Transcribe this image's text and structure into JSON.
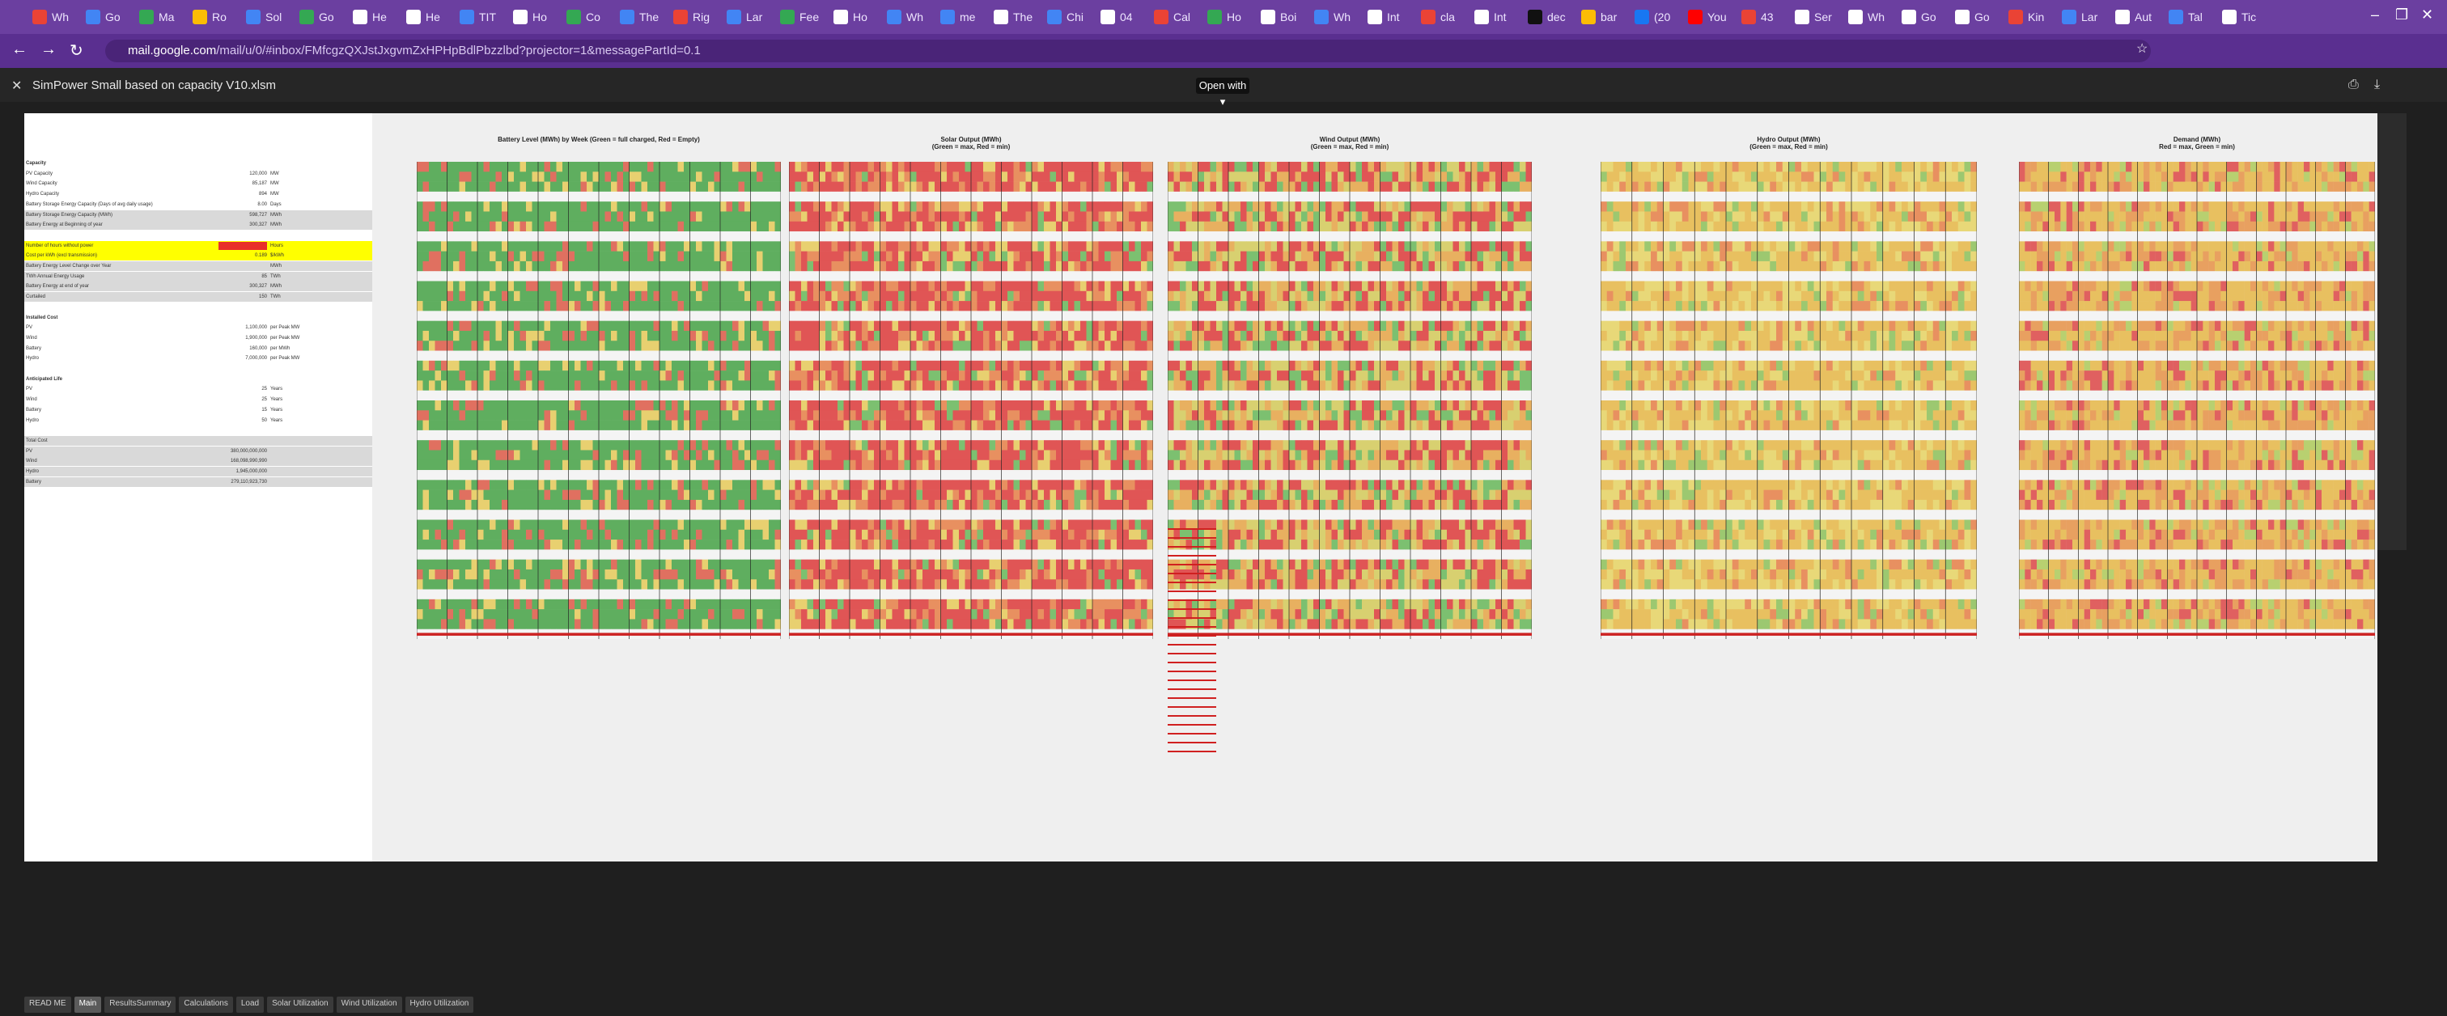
{
  "tabs": [
    {
      "label": "Wh",
      "color": "#ea4335"
    },
    {
      "label": "Go",
      "color": "#4285f4"
    },
    {
      "label": "Ma",
      "color": "#34a853"
    },
    {
      "label": "Ro",
      "color": "#fbbc05"
    },
    {
      "label": "Sol",
      "color": "#4285f4"
    },
    {
      "label": "Go",
      "color": "#34a853"
    },
    {
      "label": "He",
      "color": "#ffffff"
    },
    {
      "label": "He",
      "color": "#ffffff"
    },
    {
      "label": "TIT",
      "color": "#4285f4"
    },
    {
      "label": "Ho",
      "color": "#ffffff"
    },
    {
      "label": "Co",
      "color": "#34a853"
    },
    {
      "label": "The",
      "color": "#4285f4"
    },
    {
      "label": "Rig",
      "color": "#ea4335"
    },
    {
      "label": "Lar",
      "color": "#4285f4"
    },
    {
      "label": "Fee",
      "color": "#34a853"
    },
    {
      "label": "Ho",
      "color": "#ffffff"
    },
    {
      "label": "Wh",
      "color": "#4285f4"
    },
    {
      "label": "me",
      "color": "#4285f4"
    },
    {
      "label": "The",
      "color": "#ffffff"
    },
    {
      "label": "Chi",
      "color": "#4285f4"
    },
    {
      "label": "04",
      "color": "#ffffff"
    },
    {
      "label": "Cal",
      "color": "#ea4335"
    },
    {
      "label": "Ho",
      "color": "#34a853"
    },
    {
      "label": "Boi",
      "color": "#ffffff"
    },
    {
      "label": "Wh",
      "color": "#4285f4"
    },
    {
      "label": "Int",
      "color": "#ffffff"
    },
    {
      "label": "cla",
      "color": "#ea4335"
    },
    {
      "label": "Int",
      "color": "#ffffff"
    },
    {
      "label": "dec",
      "color": "#111111"
    },
    {
      "label": "bar",
      "color": "#fbbc05"
    },
    {
      "label": "(20",
      "color": "#1877f2"
    },
    {
      "label": "You",
      "color": "#ff0000"
    },
    {
      "label": "43",
      "color": "#ea4335"
    },
    {
      "label": "Ser",
      "color": "#ffffff"
    },
    {
      "label": "Wh",
      "color": "#ffffff"
    },
    {
      "label": "Go",
      "color": "#ffffff"
    },
    {
      "label": "Go",
      "color": "#ffffff"
    },
    {
      "label": "Kin",
      "color": "#ea4335"
    },
    {
      "label": "Lar",
      "color": "#4285f4"
    },
    {
      "label": "Aut",
      "color": "#ffffff"
    },
    {
      "label": "Tal",
      "color": "#4285f4"
    },
    {
      "label": "Tic",
      "color": "#ffffff"
    }
  ],
  "url": {
    "host": "mail.google.com",
    "path": "/mail/u/0/#inbox/FMfcgzQXJstJxgvmZxHPHpBdlPbzzlbd?projector=1&messagePartId=0.1"
  },
  "viewer": {
    "file_title": "SimPower Small based on capacity V10.xlsm",
    "open_with": "Open with"
  },
  "heatmaps": [
    {
      "title": "Battery Level (MWh) by Week (Green = full charged, Red = Empty)",
      "scheme": "battery"
    },
    {
      "title": "Solar Output (MWh)\n(Green = max, Red = min)",
      "scheme": "solar"
    },
    {
      "title": "Wind Output (MWh)\n(Green = max, Red = min)",
      "scheme": "wind"
    },
    {
      "title": "Hydro Output (MWh)\n(Green = max, Red = min)",
      "scheme": "hydro"
    },
    {
      "title": "Demand (MWh)\nRed = max, Green = min)",
      "scheme": "demand"
    }
  ],
  "left_panel": [
    {
      "label": "Capacity",
      "value": "",
      "unit": "",
      "style": "header"
    },
    {
      "label": "PV Capacity",
      "value": "120,000",
      "unit": "MW",
      "style": ""
    },
    {
      "label": "Wind Capacity",
      "value": "85,187",
      "unit": "MW",
      "style": ""
    },
    {
      "label": "Hydro Capacity",
      "value": "894",
      "unit": "MW",
      "style": ""
    },
    {
      "label": "Battery Storage Energy Capacity (Days of avg daily usage)",
      "value": "8.00",
      "unit": "Days",
      "style": ""
    },
    {
      "label": "Battery Storage Energy Capacity (MWh)",
      "value": "598,727",
      "unit": "MWh",
      "style": "gray"
    },
    {
      "label": "Battery Energy at Beginning of year",
      "value": "300,327",
      "unit": "MWh",
      "style": "gray"
    },
    {
      "label": "",
      "value": "",
      "unit": "",
      "style": ""
    },
    {
      "label": "Number of hours without power",
      "value": "",
      "unit": "Hours",
      "style": "yellow"
    },
    {
      "label": "Cost per kWh (excl transmission)",
      "value": "0.189",
      "unit": "$/kWh",
      "style": "yellow"
    },
    {
      "label": "Battery Energy Level Change over Year",
      "value": "",
      "unit": "MWh",
      "style": "gray"
    },
    {
      "label": "TWh Annual Energy Usage",
      "value": "85",
      "unit": "TWh",
      "style": "gray"
    },
    {
      "label": "Battery Energy at end of year",
      "value": "300,327",
      "unit": "MWh",
      "style": "gray"
    },
    {
      "label": "Curtailed",
      "value": "150",
      "unit": "TWh",
      "style": "gray"
    },
    {
      "label": "",
      "value": "",
      "unit": "",
      "style": ""
    },
    {
      "label": "Installed Cost",
      "value": "",
      "unit": "",
      "style": "header"
    },
    {
      "label": "PV",
      "value": "1,100,000",
      "unit": "per Peak MW",
      "style": ""
    },
    {
      "label": "Wind",
      "value": "1,900,000",
      "unit": "per Peak MW",
      "style": ""
    },
    {
      "label": "Battery",
      "value": "160,000",
      "unit": "per MWh",
      "style": ""
    },
    {
      "label": "Hydro",
      "value": "7,000,000",
      "unit": "per Peak MW",
      "style": ""
    },
    {
      "label": "",
      "value": "",
      "unit": "",
      "style": ""
    },
    {
      "label": "Anticipated Life",
      "value": "",
      "unit": "",
      "style": "header"
    },
    {
      "label": "PV",
      "value": "25",
      "unit": "Years",
      "style": ""
    },
    {
      "label": "Wind",
      "value": "25",
      "unit": "Years",
      "style": ""
    },
    {
      "label": "Battery",
      "value": "15",
      "unit": "Years",
      "style": ""
    },
    {
      "label": "Hydro",
      "value": "50",
      "unit": "Years",
      "style": ""
    },
    {
      "label": "",
      "value": "",
      "unit": "",
      "style": ""
    },
    {
      "label": "Total Cost",
      "value": "",
      "unit": "",
      "style": "gray"
    },
    {
      "label": "PV",
      "value": "380,000,000,000",
      "unit": "",
      "style": "gray"
    },
    {
      "label": "Wind",
      "value": "168,098,990,990",
      "unit": "",
      "style": "gray"
    },
    {
      "label": "Hydro",
      "value": "1,945,000,000",
      "unit": "",
      "style": "gray"
    },
    {
      "label": "Battery",
      "value": "279,110,923,730",
      "unit": "",
      "style": "gray"
    }
  ],
  "bottom_tabs": [
    "READ ME",
    "Main",
    "ResultsSummary",
    "Calculations",
    "Load",
    "Solar Utilization",
    "Wind Utilization",
    "Hydro Utilization"
  ],
  "active_tab": "Main",
  "icons": [
    "back-icon",
    "forward-icon",
    "reload-icon",
    "lock-icon",
    "star-icon",
    "close-icon",
    "print-icon",
    "download-icon"
  ]
}
